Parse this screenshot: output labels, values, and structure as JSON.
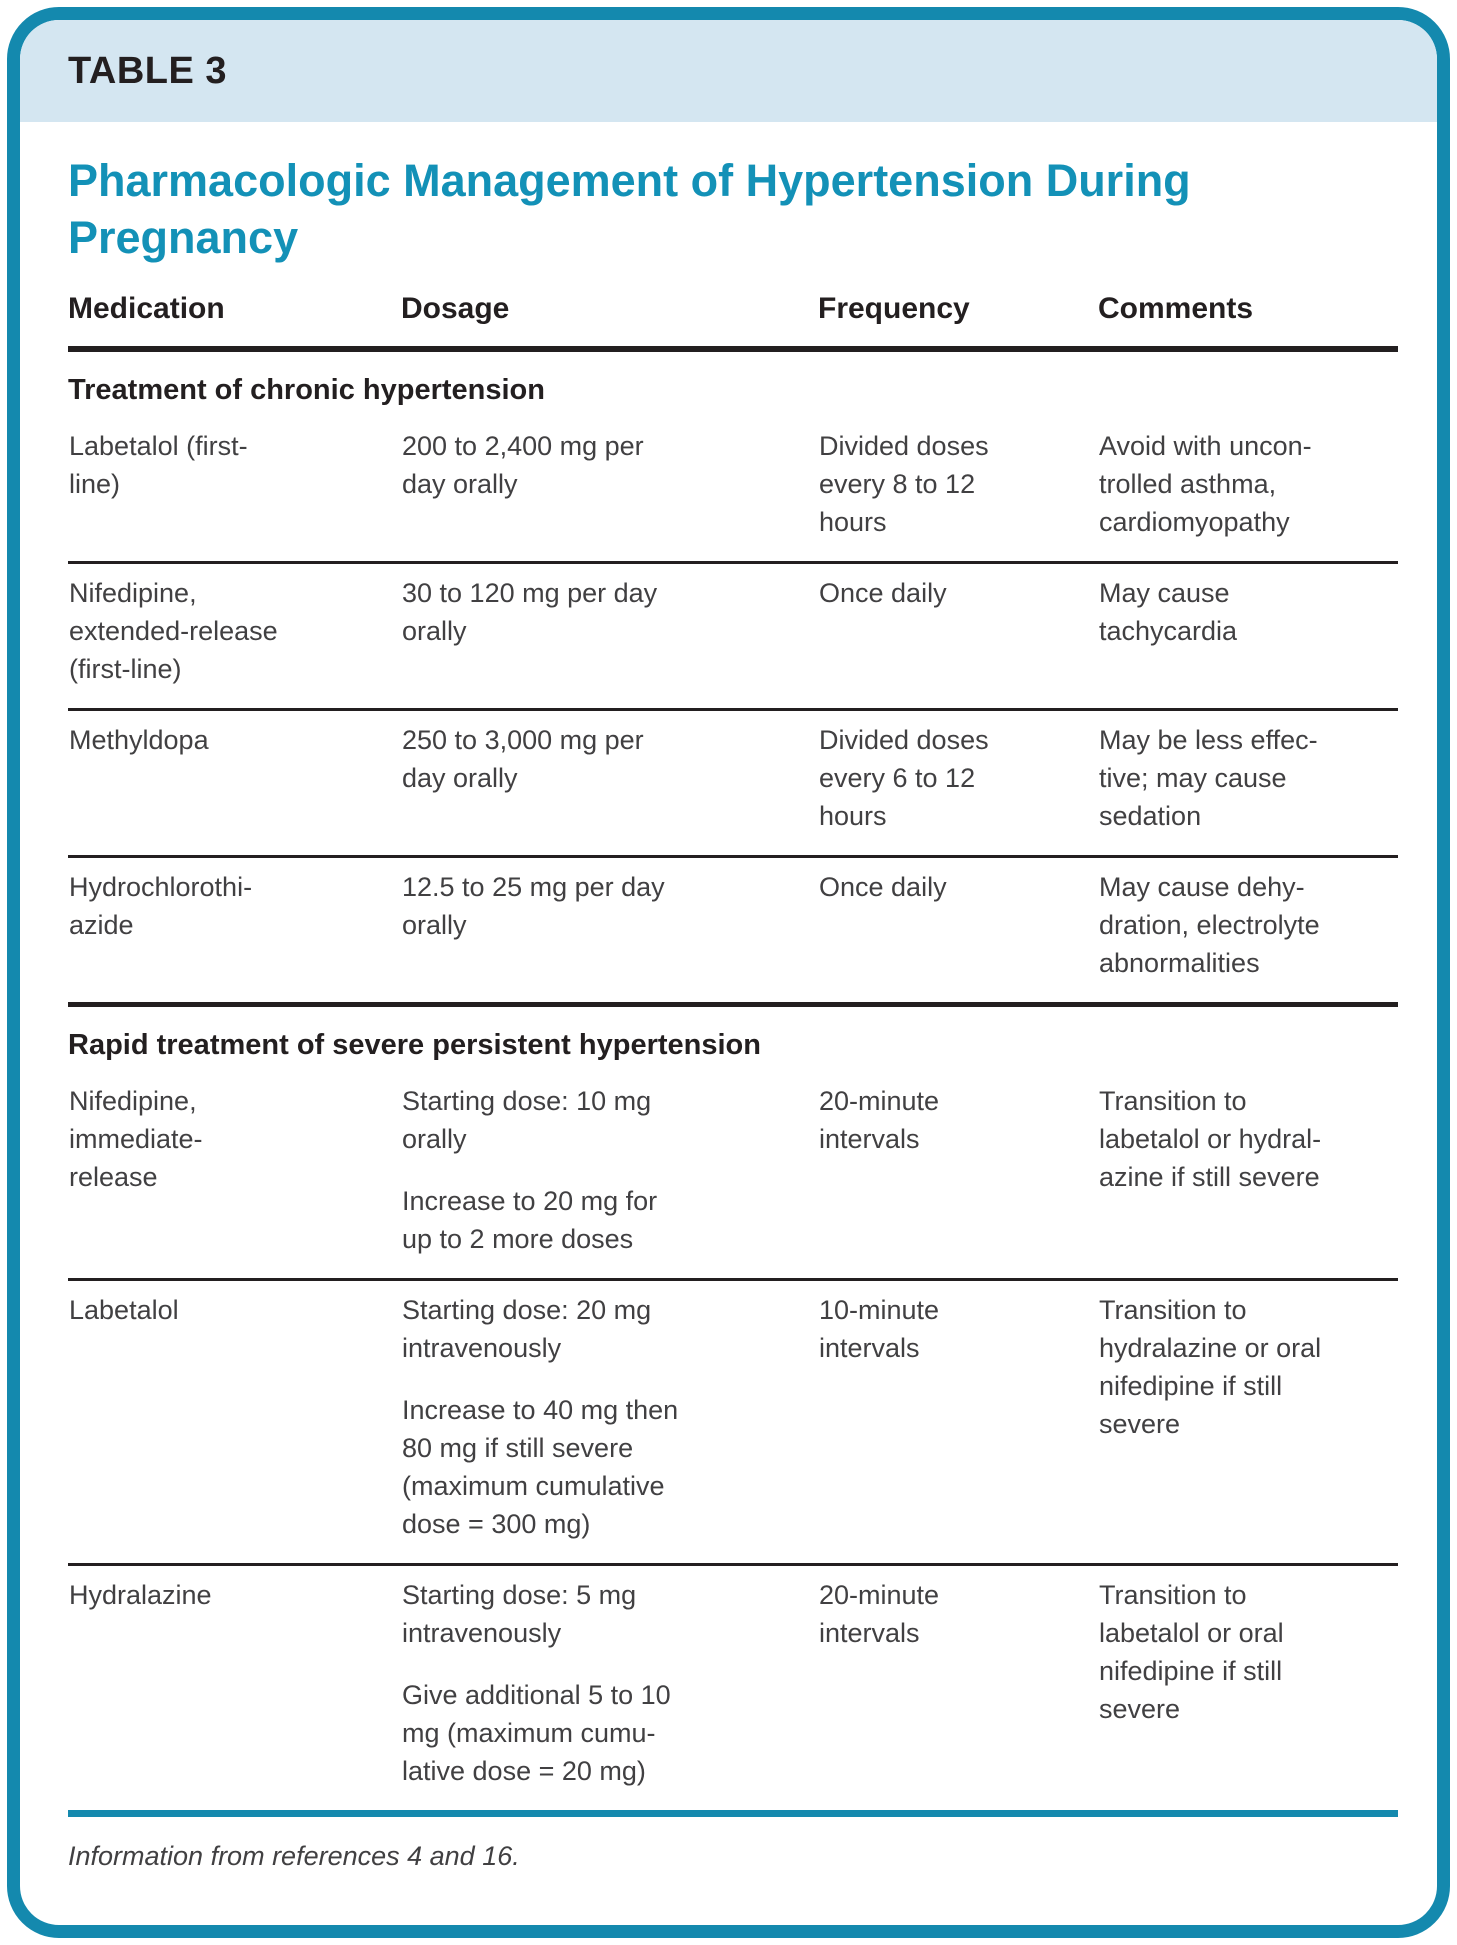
{
  "colors": {
    "accent_teal": "#1489ae",
    "title_teal": "#1391b7",
    "band_blue": "#d4e6f1",
    "heading_black": "#231f20",
    "body_gray": "#414042"
  },
  "card": {
    "label": "TABLE 3",
    "title": "Pharmacologic Management of Hypertension During Pregnancy",
    "footnote": "Information from references 4 and 16."
  },
  "columns": {
    "medication": "Medication",
    "dosage": "Dosage",
    "frequency": "Frequency",
    "comments": "Comments"
  },
  "sections": [
    {
      "header": "Treatment of chronic hypertension",
      "rows": [
        {
          "medication": "Labetalol (first-line)",
          "dosage": [
            "200 to 2,400 mg per day orally"
          ],
          "frequency": "Divided doses every 8 to 12 hours",
          "comments": "Avoid with uncon­trolled asthma, cardiomyopathy"
        },
        {
          "medication": "Nifedipine, extended-release (first-line)",
          "dosage": [
            "30 to 120 mg per day orally"
          ],
          "frequency": "Once daily",
          "comments": "May cause tachycardia"
        },
        {
          "medication": "Methyldopa",
          "dosage": [
            "250 to 3,000 mg per day orally"
          ],
          "frequency": "Divided doses every 6 to 12 hours",
          "comments": "May be less effec­tive; may cause sedation"
        },
        {
          "medication": "Hydrochlorothi­azide",
          "dosage": [
            "12.5 to 25 mg per day orally"
          ],
          "frequency": "Once daily",
          "comments": "May cause dehy­dration, electrolyte abnormalities"
        }
      ]
    },
    {
      "header": "Rapid treatment of severe persistent hypertension",
      "rows": [
        {
          "medication": "Nifedipine, immediate-release",
          "dosage": [
            "Starting dose: 10 mg orally",
            "Increase to 20 mg for up to 2 more doses"
          ],
          "frequency": "20-minute intervals",
          "comments": "Transition to labetalol or hydral­azine if still severe"
        },
        {
          "medication": "Labetalol",
          "dosage": [
            "Starting dose: 20 mg intravenously",
            "Increase to 40 mg then 80 mg if still severe (maximum cumulative dose = 300 mg)"
          ],
          "frequency": "10-minute intervals",
          "comments": "Transition to hydralazine or oral nifedipine if still severe"
        },
        {
          "medication": "Hydralazine",
          "dosage": [
            "Starting dose: 5 mg intravenously",
            "Give additional 5 to 10 mg (maximum cumu­lative dose = 20 mg)"
          ],
          "frequency": "20-minute intervals",
          "comments": "Transition to labetalol or oral nifedipine if still severe"
        }
      ]
    }
  ]
}
